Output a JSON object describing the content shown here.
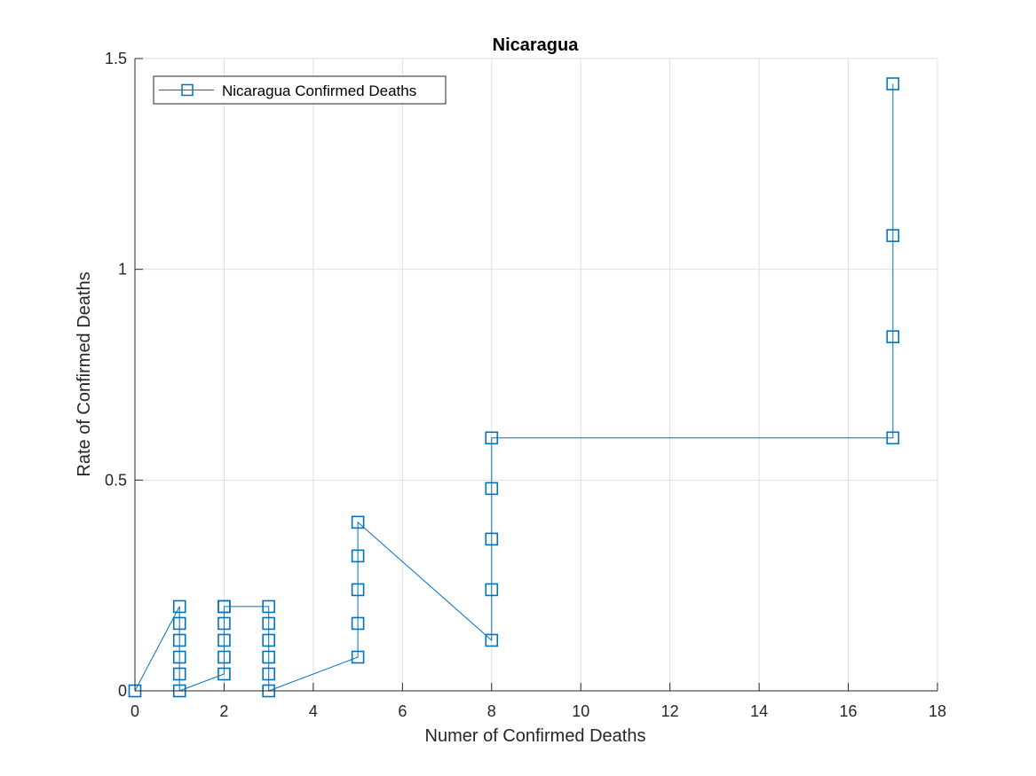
{
  "chart_data": {
    "type": "line",
    "title": "Nicaragua",
    "xlabel": "Numer of Confirmed Deaths",
    "ylabel": "Rate of Confirmed Deaths",
    "xlim": [
      0,
      18
    ],
    "ylim": [
      0,
      1.5
    ],
    "xticks": [
      0,
      2,
      4,
      6,
      8,
      10,
      12,
      14,
      16,
      18
    ],
    "xtick_labels": [
      "0",
      "2",
      "4",
      "6",
      "8",
      "10",
      "12",
      "14",
      "16",
      "18"
    ],
    "yticks": [
      0,
      0.5,
      1,
      1.5
    ],
    "ytick_labels": [
      "0",
      "0.5",
      "1",
      "1.5"
    ],
    "grid": true,
    "legend_position": "top-left",
    "series": [
      {
        "name": "Nicaragua Confirmed Deaths",
        "color": "#0072BD",
        "marker": "square",
        "x": [
          0,
          1,
          1,
          1,
          1,
          1,
          1,
          2,
          2,
          2,
          2,
          2,
          2,
          3,
          3,
          3,
          3,
          3,
          3,
          5,
          5,
          5,
          5,
          5,
          8,
          8,
          8,
          8,
          8,
          17,
          17,
          17,
          17
        ],
        "y": [
          0,
          0.2,
          0.16,
          0.12,
          0.08,
          0.04,
          0,
          0.04,
          0.08,
          0.12,
          0.16,
          0.2,
          0.2,
          0.2,
          0.16,
          0.12,
          0.08,
          0.04,
          0,
          0.08,
          0.16,
          0.24,
          0.32,
          0.4,
          0.12,
          0.24,
          0.36,
          0.48,
          0.6,
          0.6,
          0.84,
          1.08,
          1.44
        ]
      }
    ]
  }
}
